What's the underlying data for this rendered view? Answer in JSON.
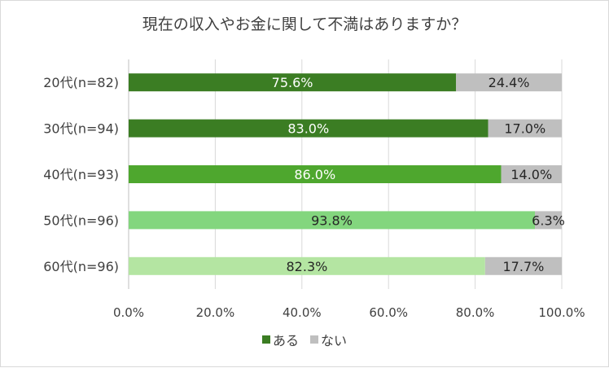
{
  "chart_data": {
    "type": "bar",
    "orientation": "horizontal",
    "stacked": true,
    "title": "現在の収入やお金に関して不満はありますか？",
    "categories": [
      "20代(n=82)",
      "30代(n=94)",
      "40代(n=93)",
      "50代(n=96)",
      "60代(n=96)"
    ],
    "series": [
      {
        "name": "ある",
        "values": [
          75.6,
          83.0,
          86.0,
          93.8,
          82.3
        ],
        "labels": [
          "75.6%",
          "83.0%",
          "86.0%",
          "93.8%",
          "82.3%"
        ],
        "colors": [
          "#3b7d23",
          "#3b7d23",
          "#4ea72e",
          "#83d67e",
          "#b4e5a2"
        ],
        "label_colors": [
          "#ffffff",
          "#ffffff",
          "#ffffff",
          "#262626",
          "#262626"
        ]
      },
      {
        "name": "ない",
        "values": [
          24.4,
          17.0,
          14.0,
          6.3,
          17.7
        ],
        "labels": [
          "24.4%",
          "17.0%",
          "14.0%",
          "6.3%",
          "17.7%"
        ],
        "colors": [
          "#bfbfbf",
          "#bfbfbf",
          "#bfbfbf",
          "#bfbfbf",
          "#bfbfbf"
        ],
        "label_colors": [
          "#262626",
          "#262626",
          "#262626",
          "#262626",
          "#262626"
        ]
      }
    ],
    "xlim": [
      0,
      100
    ],
    "xticks": [
      "0.0%",
      "20.0%",
      "40.0%",
      "60.0%",
      "80.0%",
      "100.0%"
    ],
    "grid": true,
    "legend_position": "bottom",
    "legend": [
      {
        "name": "ある",
        "color": "#3b7d23"
      },
      {
        "name": "ない",
        "color": "#bfbfbf"
      }
    ]
  }
}
